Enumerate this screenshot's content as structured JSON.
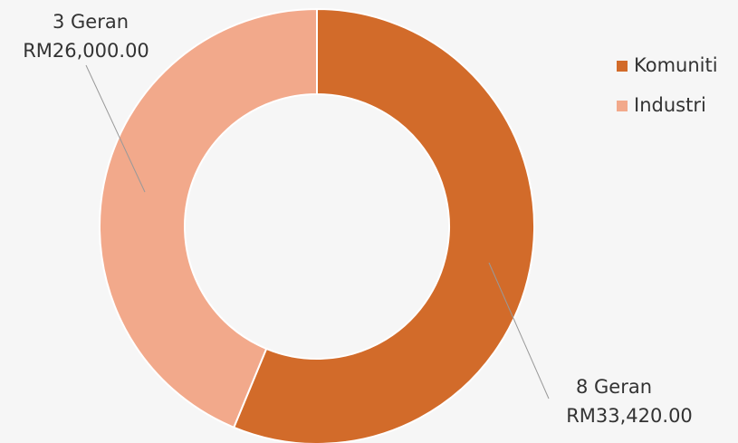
{
  "chart_data": {
    "type": "donut",
    "categories": [
      "Komuniti",
      "Industri"
    ],
    "values": [
      33420,
      26000
    ],
    "value_labels": [
      "RM33,420.00",
      "RM26,000.00"
    ],
    "count_labels": [
      "8 Geran",
      "3 Geran"
    ],
    "colors": [
      "#d26b2a",
      "#f2a98b"
    ],
    "legend": "top-right"
  }
}
